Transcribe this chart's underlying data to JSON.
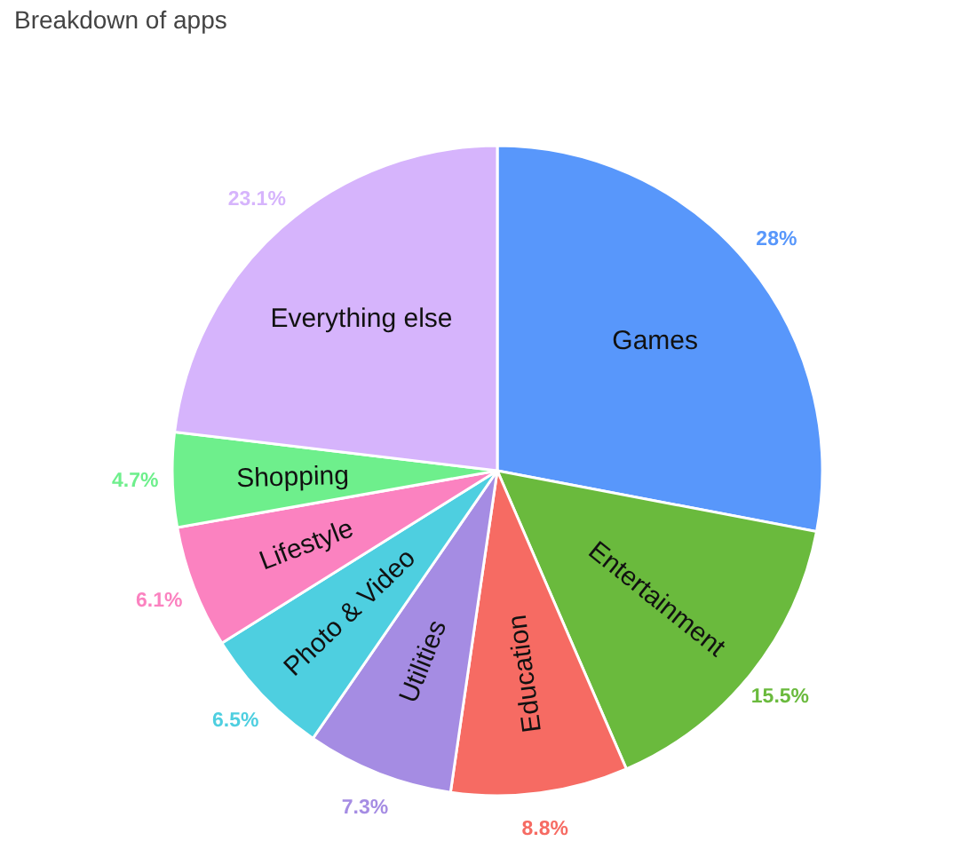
{
  "chart_data": {
    "type": "pie",
    "title": "Breakdown of apps",
    "categories": [
      "Games",
      "Entertainment",
      "Education",
      "Utilities",
      "Photo & Video",
      "Lifestyle",
      "Shopping",
      "Everything else"
    ],
    "values": [
      28,
      15.5,
      8.8,
      7.3,
      6.5,
      6.1,
      4.7,
      23.1
    ],
    "colors": [
      "#5897fb",
      "#6aba3d",
      "#f66b63",
      "#a58ce3",
      "#4ecfe0",
      "#fb82c0",
      "#6eef8c",
      "#d6b4fc"
    ],
    "value_labels": [
      "28%",
      "15.5%",
      "8.8%",
      "7.3%",
      "6.5%",
      "6.1%",
      "4.7%",
      "23.1%"
    ]
  }
}
